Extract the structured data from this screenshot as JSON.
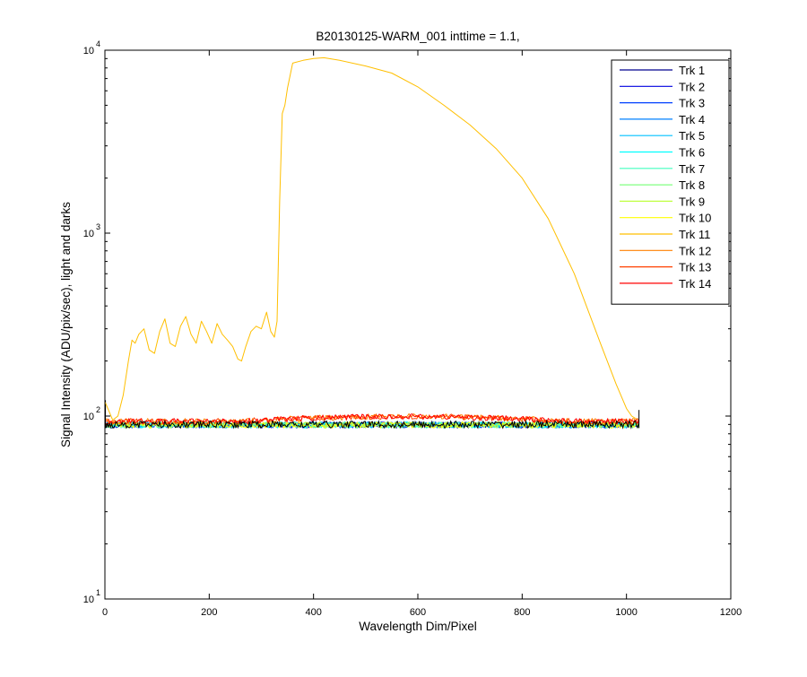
{
  "chart_data": {
    "type": "line",
    "title": "B20130125-WARM_001 inttime = 1.1,",
    "xlabel": "Wavelength Dim/Pixel",
    "ylabel": "Signal Intensity (ADU/pix/sec), light and darks",
    "xlim": [
      0,
      1200
    ],
    "ylim": [
      10,
      10000
    ],
    "yscale": "log",
    "xticks": [
      "0",
      "200",
      "400",
      "600",
      "800",
      "1000",
      "1200"
    ],
    "yticks": [
      {
        "base": "10",
        "exp": "1"
      },
      {
        "base": "10",
        "exp": "2"
      },
      {
        "base": "10",
        "exp": "3"
      },
      {
        "base": "10",
        "exp": "4"
      }
    ],
    "grid": false,
    "legend_position": "top-right",
    "series": [
      {
        "name": "Trk 1",
        "color": "#00008F"
      },
      {
        "name": "Trk 2",
        "color": "#0000E0"
      },
      {
        "name": "Trk 3",
        "color": "#0040FF"
      },
      {
        "name": "Trk 4",
        "color": "#0080FF"
      },
      {
        "name": "Trk 5",
        "color": "#00C0FF"
      },
      {
        "name": "Trk 6",
        "color": "#00FFFF"
      },
      {
        "name": "Trk 7",
        "color": "#40FFBF"
      },
      {
        "name": "Trk 8",
        "color": "#80FF80"
      },
      {
        "name": "Trk 9",
        "color": "#BFFF40"
      },
      {
        "name": "Trk 10",
        "color": "#FFFF00"
      },
      {
        "name": "Trk 11",
        "color": "#FFBF00",
        "x": [
          0,
          15,
          25,
          35,
          45,
          52,
          58,
          65,
          75,
          85,
          95,
          105,
          115,
          125,
          135,
          145,
          155,
          165,
          175,
          185,
          195,
          205,
          215,
          225,
          235,
          245,
          255,
          262,
          270,
          280,
          290,
          300,
          310,
          318,
          325,
          330,
          335,
          340,
          345,
          350,
          360,
          380,
          400,
          420,
          450,
          500,
          550,
          600,
          650,
          700,
          750,
          800,
          850,
          900,
          950,
          980,
          1000,
          1010,
          1020
        ],
        "y": [
          120,
          95,
          100,
          130,
          200,
          260,
          250,
          280,
          300,
          230,
          220,
          290,
          340,
          250,
          240,
          310,
          350,
          280,
          250,
          330,
          290,
          250,
          320,
          280,
          260,
          240,
          205,
          200,
          240,
          290,
          310,
          300,
          370,
          290,
          270,
          330,
          1500,
          4500,
          5000,
          6200,
          8500,
          8800,
          9000,
          9100,
          8800,
          8200,
          7500,
          6300,
          5000,
          3900,
          2900,
          2000,
          1200,
          600,
          250,
          150,
          110,
          100,
          96
        ]
      },
      {
        "name": "Trk 12",
        "color": "#FF8000"
      },
      {
        "name": "Trk 13",
        "color": "#FF4000"
      },
      {
        "name": "Trk 14",
        "color": "#FF0000"
      }
    ],
    "dark_baseline": {
      "x_range": [
        0,
        1024
      ],
      "y_center": 90,
      "y_band": [
        86,
        96
      ],
      "warm_bump": {
        "x_range": [
          250,
          900
        ],
        "y_peak": 102
      }
    }
  }
}
